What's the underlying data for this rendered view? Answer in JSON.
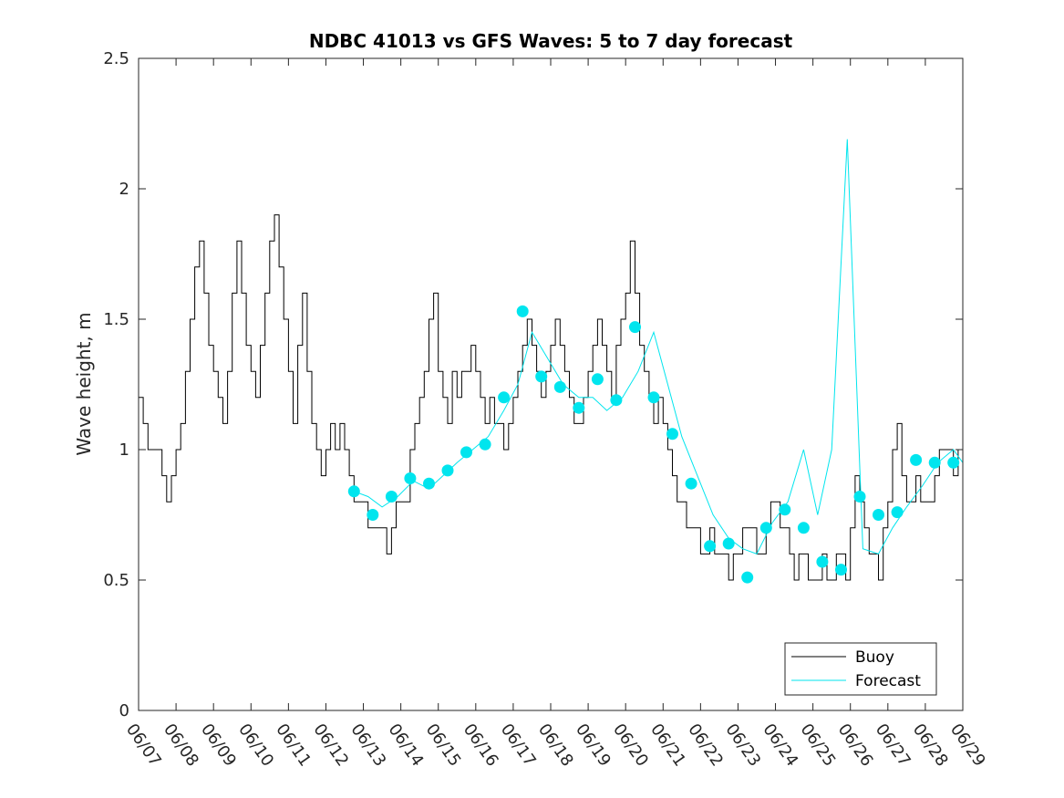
{
  "chart_data": {
    "type": "line",
    "title": "NDBC 41013 vs GFS Waves: 5 to 7 day forecast",
    "xlabel": "",
    "ylabel": "Wave height, m",
    "xlim": [
      "06/07",
      "06/29"
    ],
    "ylim": [
      0,
      2.5
    ],
    "x_ticks": [
      "06/07",
      "06/08",
      "06/09",
      "06/10",
      "06/11",
      "06/12",
      "06/13",
      "06/14",
      "06/15",
      "06/16",
      "06/17",
      "06/18",
      "06/19",
      "06/20",
      "06/21",
      "06/22",
      "06/23",
      "06/24",
      "06/25",
      "06/26",
      "06/27",
      "06/28",
      "06/29"
    ],
    "y_ticks": [
      "0",
      "0.5",
      "1",
      "1.5",
      "2",
      "2.5"
    ],
    "grid": false,
    "legend_position": "bottom-right",
    "colors": {
      "buoy": "#000000",
      "forecast": "#00e5ee"
    },
    "legend": [
      "Buoy",
      "Forecast"
    ],
    "series": [
      {
        "name": "Buoy",
        "x": [
          "06/07 00:00",
          "06/07 03:00",
          "06/07 06:00",
          "06/07 09:00",
          "06/07 12:00",
          "06/07 15:00",
          "06/07 18:00",
          "06/07 21:00",
          "06/08 00:00",
          "06/08 03:00",
          "06/08 06:00",
          "06/08 09:00",
          "06/08 12:00",
          "06/08 15:00",
          "06/08 18:00",
          "06/08 21:00",
          "06/09 00:00",
          "06/09 03:00",
          "06/09 06:00",
          "06/09 09:00",
          "06/09 12:00",
          "06/09 15:00",
          "06/09 18:00",
          "06/09 21:00",
          "06/10 00:00",
          "06/10 03:00",
          "06/10 06:00",
          "06/10 09:00",
          "06/10 12:00",
          "06/10 15:00",
          "06/10 18:00",
          "06/10 21:00",
          "06/11 00:00",
          "06/11 03:00",
          "06/11 06:00",
          "06/11 09:00",
          "06/11 12:00",
          "06/11 15:00",
          "06/11 18:00",
          "06/11 21:00",
          "06/12 00:00",
          "06/12 03:00",
          "06/12 06:00",
          "06/12 09:00",
          "06/12 12:00",
          "06/12 15:00",
          "06/12 18:00",
          "06/12 21:00",
          "06/13 00:00",
          "06/13 03:00",
          "06/13 06:00",
          "06/13 09:00",
          "06/13 12:00",
          "06/13 15:00",
          "06/13 18:00",
          "06/13 21:00",
          "06/14 00:00",
          "06/14 03:00",
          "06/14 06:00",
          "06/14 09:00",
          "06/14 12:00",
          "06/14 15:00",
          "06/14 18:00",
          "06/14 21:00",
          "06/15 00:00",
          "06/15 03:00",
          "06/15 06:00",
          "06/15 09:00",
          "06/15 12:00",
          "06/15 15:00",
          "06/15 18:00",
          "06/15 21:00",
          "06/16 00:00",
          "06/16 03:00",
          "06/16 06:00",
          "06/16 09:00",
          "06/16 12:00",
          "06/16 15:00",
          "06/16 18:00",
          "06/16 21:00",
          "06/17 00:00",
          "06/17 03:00",
          "06/17 06:00",
          "06/17 09:00",
          "06/17 12:00",
          "06/17 15:00",
          "06/17 18:00",
          "06/17 21:00",
          "06/18 00:00",
          "06/18 03:00",
          "06/18 06:00",
          "06/18 09:00",
          "06/18 12:00",
          "06/18 15:00",
          "06/18 18:00",
          "06/18 21:00",
          "06/19 00:00",
          "06/19 03:00",
          "06/19 06:00",
          "06/19 09:00",
          "06/19 12:00",
          "06/19 15:00",
          "06/19 18:00",
          "06/19 21:00",
          "06/20 00:00",
          "06/20 03:00",
          "06/20 06:00",
          "06/20 09:00",
          "06/20 12:00",
          "06/20 15:00",
          "06/20 18:00",
          "06/20 21:00",
          "06/21 00:00",
          "06/21 03:00",
          "06/21 06:00",
          "06/21 09:00",
          "06/21 12:00",
          "06/21 15:00",
          "06/21 18:00",
          "06/21 21:00",
          "06/22 00:00",
          "06/22 03:00",
          "06/22 06:00",
          "06/22 09:00",
          "06/22 12:00",
          "06/22 15:00",
          "06/22 18:00",
          "06/22 21:00",
          "06/23 00:00",
          "06/23 03:00",
          "06/23 06:00",
          "06/23 09:00",
          "06/23 12:00",
          "06/23 15:00",
          "06/23 18:00",
          "06/23 21:00",
          "06/24 00:00",
          "06/24 03:00",
          "06/24 06:00",
          "06/24 09:00",
          "06/24 12:00",
          "06/24 15:00",
          "06/24 18:00",
          "06/24 21:00",
          "06/25 00:00",
          "06/25 03:00",
          "06/25 06:00",
          "06/25 09:00",
          "06/25 12:00",
          "06/25 15:00",
          "06/25 18:00",
          "06/25 21:00",
          "06/26 00:00",
          "06/26 03:00",
          "06/26 06:00",
          "06/26 09:00",
          "06/26 12:00",
          "06/26 15:00",
          "06/26 18:00",
          "06/26 21:00",
          "06/27 00:00",
          "06/27 03:00",
          "06/27 06:00",
          "06/27 09:00",
          "06/27 12:00",
          "06/27 15:00",
          "06/27 18:00",
          "06/27 21:00",
          "06/28 00:00",
          "06/28 03:00",
          "06/28 06:00",
          "06/28 09:00",
          "06/28 12:00",
          "06/28 15:00",
          "06/28 18:00",
          "06/28 21:00",
          "06/29 00:00"
        ],
        "values": [
          1.2,
          1.1,
          1.0,
          1.0,
          1.0,
          0.9,
          0.8,
          0.9,
          1.0,
          1.1,
          1.3,
          1.5,
          1.7,
          1.8,
          1.6,
          1.4,
          1.3,
          1.2,
          1.1,
          1.3,
          1.6,
          1.8,
          1.6,
          1.4,
          1.3,
          1.2,
          1.4,
          1.6,
          1.8,
          1.9,
          1.7,
          1.5,
          1.3,
          1.1,
          1.4,
          1.6,
          1.3,
          1.1,
          1.0,
          0.9,
          1.0,
          1.1,
          1.0,
          1.1,
          1.0,
          0.9,
          0.8,
          0.8,
          0.8,
          0.7,
          0.7,
          0.7,
          0.7,
          0.6,
          0.7,
          0.8,
          0.8,
          0.8,
          1.0,
          1.1,
          1.2,
          1.3,
          1.5,
          1.6,
          1.3,
          1.2,
          1.1,
          1.3,
          1.2,
          1.3,
          1.3,
          1.4,
          1.3,
          1.2,
          1.1,
          1.2,
          1.1,
          1.1,
          1.0,
          1.1,
          1.2,
          1.3,
          1.4,
          1.5,
          1.4,
          1.3,
          1.2,
          1.3,
          1.4,
          1.5,
          1.4,
          1.3,
          1.2,
          1.1,
          1.1,
          1.2,
          1.3,
          1.4,
          1.5,
          1.4,
          1.3,
          1.2,
          1.4,
          1.5,
          1.6,
          1.8,
          1.6,
          1.4,
          1.3,
          1.2,
          1.1,
          1.2,
          1.1,
          1.0,
          0.9,
          0.8,
          0.8,
          0.7,
          0.7,
          0.7,
          0.6,
          0.6,
          0.7,
          0.6,
          0.6,
          0.6,
          0.5,
          0.6,
          0.6,
          0.7,
          0.7,
          0.7,
          0.6,
          0.6,
          0.7,
          0.8,
          0.8,
          0.7,
          0.7,
          0.6,
          0.5,
          0.6,
          0.6,
          0.5,
          0.5,
          0.5,
          0.6,
          0.5,
          0.5,
          0.6,
          0.6,
          0.5,
          0.7,
          0.9,
          0.8,
          0.7,
          0.6,
          0.6,
          0.5,
          0.7,
          0.8,
          1.0,
          1.1,
          0.9,
          0.8,
          0.8,
          0.9,
          0.8,
          0.8,
          0.8,
          0.9,
          1.0,
          1.0,
          1.0,
          0.9,
          1.0,
          1.0
        ]
      },
      {
        "name": "Forecast",
        "x": [
          "06/12 18:00",
          "06/13 03:00",
          "06/13 12:00",
          "06/13 22:00",
          "06/14 08:00",
          "06/14 18:00",
          "06/15 03:00",
          "06/15 12:00",
          "06/15 22:00",
          "06/16 08:00",
          "06/16 18:00",
          "06/17 03:00",
          "06/17 12:00",
          "06/17 22:00",
          "06/18 08:00",
          "06/18 18:00",
          "06/19 03:00",
          "06/19 12:00",
          "06/19 22:00",
          "06/20 08:00",
          "06/20 18:00",
          "06/21 03:00",
          "06/21 12:00",
          "06/21 22:00",
          "06/22 08:00",
          "06/22 18:00",
          "06/23 03:00",
          "06/23 12:00",
          "06/23 22:00",
          "06/24 08:00",
          "06/24 18:00",
          "06/25 03:00",
          "06/25 12:00",
          "06/25 22:00",
          "06/26 08:00",
          "06/26 18:00",
          "06/27 03:00",
          "06/27 12:00",
          "06/27 22:00",
          "06/28 08:00",
          "06/28 18:00",
          "06/29 00:00"
        ],
        "values": [
          0.84,
          0.82,
          0.78,
          0.82,
          0.88,
          0.85,
          0.9,
          0.95,
          1.0,
          1.05,
          1.15,
          1.25,
          1.45,
          1.35,
          1.25,
          1.2,
          1.2,
          1.15,
          1.2,
          1.3,
          1.45,
          1.25,
          1.05,
          0.9,
          0.75,
          0.66,
          0.62,
          0.6,
          0.72,
          0.8,
          1.0,
          0.75,
          1.0,
          2.19,
          0.62,
          0.6,
          0.7,
          0.78,
          0.86,
          0.95,
          1.0,
          0.95
        ],
        "markers": {
          "x": [
            "06/12 18:00",
            "06/13 06:00",
            "06/13 18:00",
            "06/14 06:00",
            "06/14 18:00",
            "06/15 06:00",
            "06/15 18:00",
            "06/16 06:00",
            "06/16 18:00",
            "06/17 06:00",
            "06/17 18:00",
            "06/18 06:00",
            "06/18 18:00",
            "06/19 06:00",
            "06/19 18:00",
            "06/20 06:00",
            "06/20 18:00",
            "06/21 06:00",
            "06/21 18:00",
            "06/22 06:00",
            "06/22 18:00",
            "06/23 06:00",
            "06/23 18:00",
            "06/24 06:00",
            "06/24 18:00",
            "06/25 06:00",
            "06/25 18:00",
            "06/26 06:00",
            "06/26 18:00",
            "06/27 06:00",
            "06/27 18:00",
            "06/28 06:00",
            "06/28 18:00"
          ],
          "values": [
            0.84,
            0.75,
            0.82,
            0.89,
            0.87,
            0.92,
            0.99,
            1.02,
            1.2,
            1.53,
            1.28,
            1.24,
            1.16,
            1.27,
            1.19,
            1.47,
            1.2,
            1.06,
            0.87,
            0.63,
            0.64,
            0.51,
            0.7,
            0.77,
            0.7,
            0.57,
            0.54,
            0.82,
            0.75,
            0.76,
            0.96,
            0.95,
            0.95
          ]
        }
      }
    ]
  }
}
